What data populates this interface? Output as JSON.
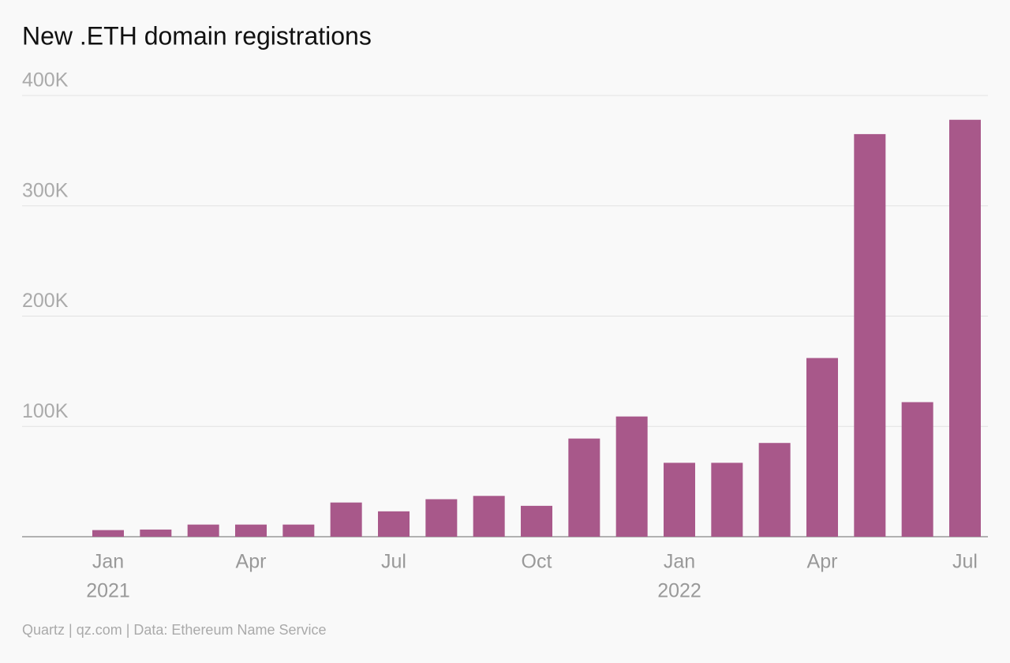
{
  "chart_data": {
    "type": "bar",
    "title": "New .ETH domain registrations",
    "source": "Quartz | qz.com | Data: Ethereum Name Service",
    "categories": [
      "Jan",
      null,
      null,
      "Apr",
      null,
      null,
      "Jul",
      null,
      null,
      "Oct",
      null,
      null,
      "Jan",
      null,
      null,
      "Apr",
      null,
      null,
      "Jul"
    ],
    "category_years": [
      "2021",
      null,
      null,
      null,
      null,
      null,
      null,
      null,
      null,
      null,
      null,
      null,
      "2022",
      null,
      null,
      null,
      null,
      null,
      null
    ],
    "values": [
      6000,
      6500,
      11000,
      11000,
      11000,
      31000,
      23000,
      34000,
      37000,
      28000,
      89000,
      109000,
      67000,
      67000,
      85000,
      162000,
      365000,
      122000,
      378000
    ],
    "color": "#a8588a",
    "ylim": [
      0,
      400000
    ],
    "yticks": [
      {
        "value": 100000,
        "label": "100K"
      },
      {
        "value": 200000,
        "label": "200K"
      },
      {
        "value": 300000,
        "label": "300K"
      },
      {
        "value": 400000,
        "label": "400K"
      }
    ],
    "grid": true
  }
}
